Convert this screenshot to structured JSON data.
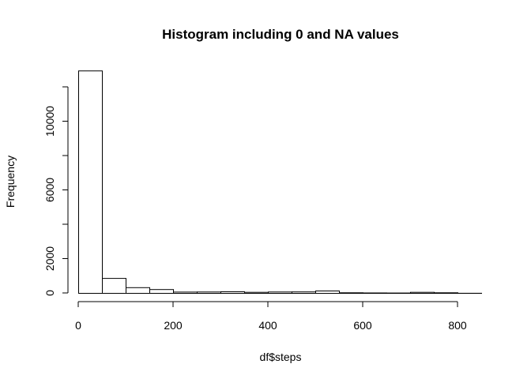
{
  "chart_data": {
    "type": "bar",
    "title": "Histogram including 0 and NA values",
    "xlabel": "df$steps",
    "ylabel": "Frequency",
    "bin_edges": [
      0,
      50,
      100,
      150,
      200,
      250,
      300,
      350,
      400,
      450,
      500,
      550,
      600,
      650,
      700,
      750,
      800,
      850
    ],
    "values": [
      12950,
      870,
      330,
      220,
      75,
      80,
      90,
      60,
      80,
      85,
      140,
      30,
      25,
      20,
      60,
      30,
      5
    ],
    "xticks": [
      0,
      200,
      400,
      600,
      800
    ],
    "yticks": [
      0,
      2000,
      6000,
      10000
    ],
    "xlim": [
      0,
      850
    ],
    "ylim": [
      0,
      12950
    ],
    "grid": false,
    "colors": {
      "bar_fill": "#ffffff",
      "bar_stroke": "#000000"
    }
  }
}
